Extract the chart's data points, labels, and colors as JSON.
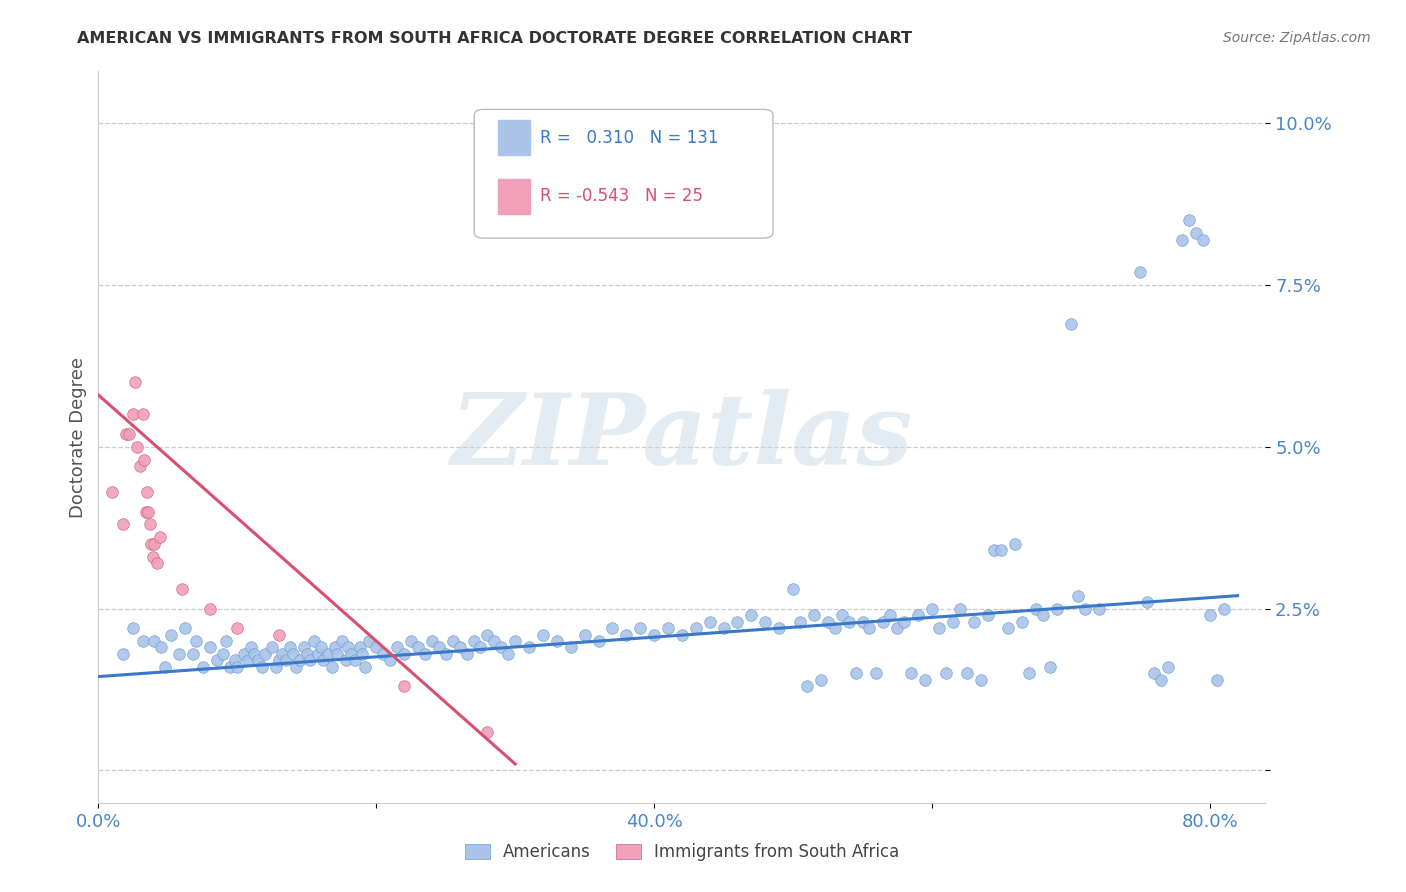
{
  "title": "AMERICAN VS IMMIGRANTS FROM SOUTH AFRICA DOCTORATE DEGREE CORRELATION CHART",
  "source": "Source: ZipAtlas.com",
  "ylabel": "Doctorate Degree",
  "legend_entries": [
    {
      "label": "Americans",
      "R": "0.310",
      "N": "131"
    },
    {
      "label": "Immigrants from South Africa",
      "R": "-0.543",
      "N": "25"
    }
  ],
  "xlim": [
    0.0,
    0.84
  ],
  "ylim": [
    -0.005,
    0.108
  ],
  "x_ticks": [
    0.0,
    0.2,
    0.4,
    0.6,
    0.8
  ],
  "x_tick_labels": [
    "0.0%",
    "",
    "40.0%",
    "",
    "80.0%"
  ],
  "y_ticks": [
    0.0,
    0.025,
    0.05,
    0.075,
    0.1
  ],
  "y_tick_labels": [
    "",
    "2.5%",
    "5.0%",
    "7.5%",
    "10.0%"
  ],
  "blue_scatter": [
    [
      0.018,
      0.018
    ],
    [
      0.025,
      0.022
    ],
    [
      0.032,
      0.02
    ],
    [
      0.04,
      0.02
    ],
    [
      0.045,
      0.019
    ],
    [
      0.048,
      0.016
    ],
    [
      0.052,
      0.021
    ],
    [
      0.058,
      0.018
    ],
    [
      0.062,
      0.022
    ],
    [
      0.068,
      0.018
    ],
    [
      0.07,
      0.02
    ],
    [
      0.075,
      0.016
    ],
    [
      0.08,
      0.019
    ],
    [
      0.085,
      0.017
    ],
    [
      0.09,
      0.018
    ],
    [
      0.092,
      0.02
    ],
    [
      0.095,
      0.016
    ],
    [
      0.098,
      0.017
    ],
    [
      0.1,
      0.016
    ],
    [
      0.105,
      0.018
    ],
    [
      0.108,
      0.017
    ],
    [
      0.11,
      0.019
    ],
    [
      0.112,
      0.018
    ],
    [
      0.115,
      0.017
    ],
    [
      0.118,
      0.016
    ],
    [
      0.12,
      0.018
    ],
    [
      0.125,
      0.019
    ],
    [
      0.128,
      0.016
    ],
    [
      0.13,
      0.017
    ],
    [
      0.132,
      0.018
    ],
    [
      0.135,
      0.017
    ],
    [
      0.138,
      0.019
    ],
    [
      0.14,
      0.018
    ],
    [
      0.142,
      0.016
    ],
    [
      0.145,
      0.017
    ],
    [
      0.148,
      0.019
    ],
    [
      0.15,
      0.018
    ],
    [
      0.152,
      0.017
    ],
    [
      0.155,
      0.02
    ],
    [
      0.158,
      0.018
    ],
    [
      0.16,
      0.019
    ],
    [
      0.162,
      0.017
    ],
    [
      0.165,
      0.018
    ],
    [
      0.168,
      0.016
    ],
    [
      0.17,
      0.019
    ],
    [
      0.172,
      0.018
    ],
    [
      0.175,
      0.02
    ],
    [
      0.178,
      0.017
    ],
    [
      0.18,
      0.019
    ],
    [
      0.182,
      0.018
    ],
    [
      0.185,
      0.017
    ],
    [
      0.188,
      0.019
    ],
    [
      0.19,
      0.018
    ],
    [
      0.192,
      0.016
    ],
    [
      0.195,
      0.02
    ],
    [
      0.2,
      0.019
    ],
    [
      0.205,
      0.018
    ],
    [
      0.21,
      0.017
    ],
    [
      0.215,
      0.019
    ],
    [
      0.22,
      0.018
    ],
    [
      0.225,
      0.02
    ],
    [
      0.23,
      0.019
    ],
    [
      0.235,
      0.018
    ],
    [
      0.24,
      0.02
    ],
    [
      0.245,
      0.019
    ],
    [
      0.25,
      0.018
    ],
    [
      0.255,
      0.02
    ],
    [
      0.26,
      0.019
    ],
    [
      0.265,
      0.018
    ],
    [
      0.27,
      0.02
    ],
    [
      0.275,
      0.019
    ],
    [
      0.28,
      0.021
    ],
    [
      0.285,
      0.02
    ],
    [
      0.29,
      0.019
    ],
    [
      0.295,
      0.018
    ],
    [
      0.3,
      0.02
    ],
    [
      0.31,
      0.019
    ],
    [
      0.32,
      0.021
    ],
    [
      0.33,
      0.02
    ],
    [
      0.34,
      0.019
    ],
    [
      0.35,
      0.021
    ],
    [
      0.36,
      0.02
    ],
    [
      0.37,
      0.022
    ],
    [
      0.38,
      0.021
    ],
    [
      0.39,
      0.022
    ],
    [
      0.4,
      0.021
    ],
    [
      0.41,
      0.022
    ],
    [
      0.42,
      0.021
    ],
    [
      0.43,
      0.022
    ],
    [
      0.44,
      0.023
    ],
    [
      0.45,
      0.022
    ],
    [
      0.46,
      0.023
    ],
    [
      0.47,
      0.024
    ],
    [
      0.48,
      0.023
    ],
    [
      0.49,
      0.022
    ],
    [
      0.5,
      0.028
    ],
    [
      0.505,
      0.023
    ],
    [
      0.51,
      0.013
    ],
    [
      0.515,
      0.024
    ],
    [
      0.52,
      0.014
    ],
    [
      0.525,
      0.023
    ],
    [
      0.53,
      0.022
    ],
    [
      0.535,
      0.024
    ],
    [
      0.54,
      0.023
    ],
    [
      0.545,
      0.015
    ],
    [
      0.55,
      0.023
    ],
    [
      0.555,
      0.022
    ],
    [
      0.56,
      0.015
    ],
    [
      0.565,
      0.023
    ],
    [
      0.57,
      0.024
    ],
    [
      0.575,
      0.022
    ],
    [
      0.58,
      0.023
    ],
    [
      0.585,
      0.015
    ],
    [
      0.59,
      0.024
    ],
    [
      0.595,
      0.014
    ],
    [
      0.6,
      0.025
    ],
    [
      0.605,
      0.022
    ],
    [
      0.61,
      0.015
    ],
    [
      0.615,
      0.023
    ],
    [
      0.62,
      0.025
    ],
    [
      0.625,
      0.015
    ],
    [
      0.63,
      0.023
    ],
    [
      0.635,
      0.014
    ],
    [
      0.64,
      0.024
    ],
    [
      0.645,
      0.034
    ],
    [
      0.65,
      0.034
    ],
    [
      0.655,
      0.022
    ],
    [
      0.66,
      0.035
    ],
    [
      0.665,
      0.023
    ],
    [
      0.67,
      0.015
    ],
    [
      0.675,
      0.025
    ],
    [
      0.68,
      0.024
    ],
    [
      0.685,
      0.016
    ],
    [
      0.69,
      0.025
    ],
    [
      0.7,
      0.069
    ],
    [
      0.705,
      0.027
    ],
    [
      0.71,
      0.025
    ],
    [
      0.72,
      0.025
    ],
    [
      0.75,
      0.077
    ],
    [
      0.755,
      0.026
    ],
    [
      0.76,
      0.015
    ],
    [
      0.765,
      0.014
    ],
    [
      0.77,
      0.016
    ],
    [
      0.78,
      0.082
    ],
    [
      0.785,
      0.085
    ],
    [
      0.79,
      0.083
    ],
    [
      0.795,
      0.082
    ],
    [
      0.8,
      0.024
    ],
    [
      0.805,
      0.014
    ],
    [
      0.81,
      0.025
    ]
  ],
  "pink_scatter": [
    [
      0.01,
      0.043
    ],
    [
      0.018,
      0.038
    ],
    [
      0.02,
      0.052
    ],
    [
      0.022,
      0.052
    ],
    [
      0.025,
      0.055
    ],
    [
      0.026,
      0.06
    ],
    [
      0.028,
      0.05
    ],
    [
      0.03,
      0.047
    ],
    [
      0.032,
      0.055
    ],
    [
      0.033,
      0.048
    ],
    [
      0.034,
      0.04
    ],
    [
      0.035,
      0.043
    ],
    [
      0.036,
      0.04
    ],
    [
      0.037,
      0.038
    ],
    [
      0.038,
      0.035
    ],
    [
      0.039,
      0.033
    ],
    [
      0.04,
      0.035
    ],
    [
      0.042,
      0.032
    ],
    [
      0.044,
      0.036
    ],
    [
      0.06,
      0.028
    ],
    [
      0.08,
      0.025
    ],
    [
      0.1,
      0.022
    ],
    [
      0.13,
      0.021
    ],
    [
      0.22,
      0.013
    ],
    [
      0.28,
      0.006
    ]
  ],
  "blue_line_x": [
    0.0,
    0.82
  ],
  "blue_line_y": [
    0.0145,
    0.027
  ],
  "pink_line_x": [
    0.0,
    0.3
  ],
  "pink_line_y": [
    0.058,
    0.001
  ],
  "blue_line_color": "#3a78c9",
  "pink_line_color": "#d94f70",
  "scatter_blue_color": "#aac4e8",
  "scatter_blue_edge": "#6a9fd8",
  "scatter_pink_color": "#f0a0b8",
  "scatter_pink_edge": "#d06080",
  "scatter_size": 70,
  "background_color": "#ffffff",
  "grid_color": "#cccccc",
  "tick_color_blue": "#4a86c8",
  "tick_color_pink": "#d94f70",
  "title_color": "#333333",
  "ylabel_color": "#555555",
  "watermark": "ZIPatlas",
  "watermark_color": "#c8d8e8"
}
